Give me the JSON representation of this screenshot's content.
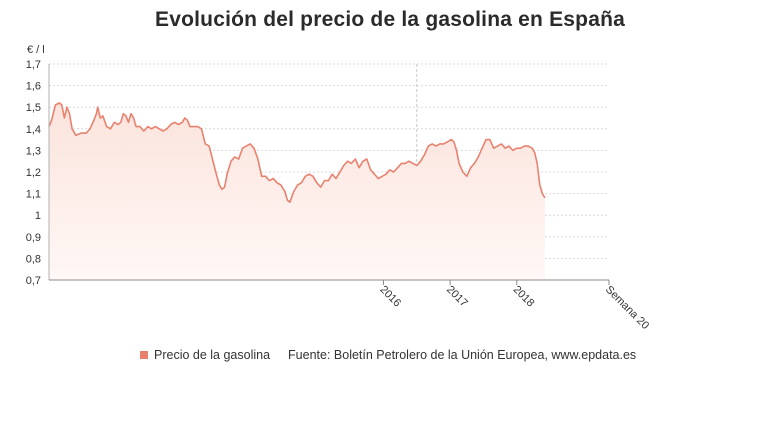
{
  "chart_data": {
    "type": "area",
    "title": "Evolución del precio de la gasolina en España",
    "ylabel": "€ / l",
    "xlabel": "",
    "ylim": [
      0.7,
      1.7
    ],
    "yticks": [
      0.7,
      0.8,
      0.9,
      1,
      1.1,
      1.2,
      1.3,
      1.4,
      1.5,
      1.6,
      1.7
    ],
    "ytick_labels": [
      "0,7",
      "0,8",
      "0,9",
      "1",
      "1,1",
      "1,2",
      "1,3",
      "1,4",
      "1,5",
      "1,6",
      "1,7"
    ],
    "xticks": [
      {
        "label": "2016",
        "week": 261
      },
      {
        "label": "2017",
        "week": 313
      },
      {
        "label": "2018",
        "week": 365
      },
      {
        "label": "Semana 20",
        "week": 437
      }
    ],
    "reference_line_week": 287,
    "grid": true,
    "legend_position": "bottom-left",
    "source": "Fuente: Boletín Petrolero de la Unión Europea, www.epdata.es",
    "colors": {
      "line": "#e8826e",
      "fill_top": "#fbe3dc",
      "fill_bottom": "#fff8f6",
      "grid": "#d9d9d9",
      "axis": "#b0b0b0",
      "refline": "#c8c8c8"
    },
    "series": [
      {
        "name": "Precio de la gasolina",
        "x_unit": "week",
        "points": [
          [
            0,
            1.41
          ],
          [
            2,
            1.44
          ],
          [
            5,
            1.51
          ],
          [
            8,
            1.52
          ],
          [
            10,
            1.51
          ],
          [
            12,
            1.45
          ],
          [
            14,
            1.5
          ],
          [
            16,
            1.47
          ],
          [
            18,
            1.4
          ],
          [
            21,
            1.37
          ],
          [
            25,
            1.38
          ],
          [
            29,
            1.38
          ],
          [
            32,
            1.4
          ],
          [
            35,
            1.44
          ],
          [
            37,
            1.47
          ],
          [
            38,
            1.5
          ],
          [
            40,
            1.45
          ],
          [
            42,
            1.46
          ],
          [
            45,
            1.41
          ],
          [
            48,
            1.4
          ],
          [
            51,
            1.43
          ],
          [
            54,
            1.42
          ],
          [
            56,
            1.43
          ],
          [
            58,
            1.47
          ],
          [
            60,
            1.46
          ],
          [
            62,
            1.43
          ],
          [
            64,
            1.47
          ],
          [
            66,
            1.45
          ],
          [
            68,
            1.41
          ],
          [
            71,
            1.41
          ],
          [
            74,
            1.39
          ],
          [
            77,
            1.41
          ],
          [
            80,
            1.4
          ],
          [
            83,
            1.41
          ],
          [
            86,
            1.4
          ],
          [
            89,
            1.39
          ],
          [
            92,
            1.4
          ],
          [
            95,
            1.42
          ],
          [
            98,
            1.43
          ],
          [
            101,
            1.42
          ],
          [
            104,
            1.43
          ],
          [
            106,
            1.45
          ],
          [
            108,
            1.44
          ],
          [
            110,
            1.41
          ],
          [
            113,
            1.41
          ],
          [
            116,
            1.41
          ],
          [
            119,
            1.4
          ],
          [
            122,
            1.33
          ],
          [
            125,
            1.32
          ],
          [
            128,
            1.25
          ],
          [
            131,
            1.18
          ],
          [
            133,
            1.14
          ],
          [
            135,
            1.12
          ],
          [
            137,
            1.13
          ],
          [
            139,
            1.19
          ],
          [
            142,
            1.25
          ],
          [
            145,
            1.27
          ],
          [
            148,
            1.26
          ],
          [
            151,
            1.31
          ],
          [
            154,
            1.32
          ],
          [
            157,
            1.33
          ],
          [
            160,
            1.31
          ],
          [
            163,
            1.26
          ],
          [
            166,
            1.18
          ],
          [
            169,
            1.18
          ],
          [
            172,
            1.16
          ],
          [
            175,
            1.17
          ],
          [
            178,
            1.15
          ],
          [
            181,
            1.14
          ],
          [
            184,
            1.11
          ],
          [
            186,
            1.07
          ],
          [
            188,
            1.06
          ],
          [
            191,
            1.11
          ],
          [
            194,
            1.14
          ],
          [
            197,
            1.15
          ],
          [
            200,
            1.18
          ],
          [
            203,
            1.19
          ],
          [
            206,
            1.18
          ],
          [
            209,
            1.15
          ],
          [
            212,
            1.13
          ],
          [
            215,
            1.16
          ],
          [
            218,
            1.16
          ],
          [
            221,
            1.19
          ],
          [
            224,
            1.17
          ],
          [
            227,
            1.2
          ],
          [
            230,
            1.23
          ],
          [
            233,
            1.25
          ],
          [
            236,
            1.24
          ],
          [
            239,
            1.26
          ],
          [
            242,
            1.22
          ],
          [
            245,
            1.25
          ],
          [
            248,
            1.26
          ],
          [
            251,
            1.21
          ],
          [
            254,
            1.19
          ],
          [
            257,
            1.17
          ],
          [
            260,
            1.18
          ],
          [
            263,
            1.19
          ],
          [
            266,
            1.21
          ],
          [
            269,
            1.2
          ],
          [
            272,
            1.22
          ],
          [
            275,
            1.24
          ],
          [
            278,
            1.24
          ],
          [
            281,
            1.25
          ],
          [
            284,
            1.24
          ],
          [
            287,
            1.23
          ],
          [
            290,
            1.25
          ],
          [
            293,
            1.28
          ],
          [
            296,
            1.32
          ],
          [
            299,
            1.33
          ],
          [
            302,
            1.32
          ],
          [
            305,
            1.33
          ],
          [
            308,
            1.33
          ],
          [
            311,
            1.34
          ],
          [
            314,
            1.35
          ],
          [
            316,
            1.34
          ],
          [
            318,
            1.3
          ],
          [
            320,
            1.24
          ],
          [
            323,
            1.2
          ],
          [
            326,
            1.18
          ],
          [
            329,
            1.22
          ],
          [
            332,
            1.24
          ],
          [
            335,
            1.27
          ],
          [
            338,
            1.31
          ],
          [
            341,
            1.35
          ],
          [
            344,
            1.35
          ],
          [
            347,
            1.31
          ],
          [
            350,
            1.32
          ],
          [
            353,
            1.33
          ],
          [
            356,
            1.31
          ],
          [
            359,
            1.32
          ],
          [
            362,
            1.3
          ],
          [
            365,
            1.31
          ],
          [
            368,
            1.31
          ],
          [
            371,
            1.32
          ],
          [
            374,
            1.32
          ],
          [
            377,
            1.31
          ],
          [
            379,
            1.29
          ],
          [
            381,
            1.24
          ],
          [
            383,
            1.14
          ],
          [
            385,
            1.1
          ],
          [
            387,
            1.08
          ]
        ]
      }
    ]
  }
}
